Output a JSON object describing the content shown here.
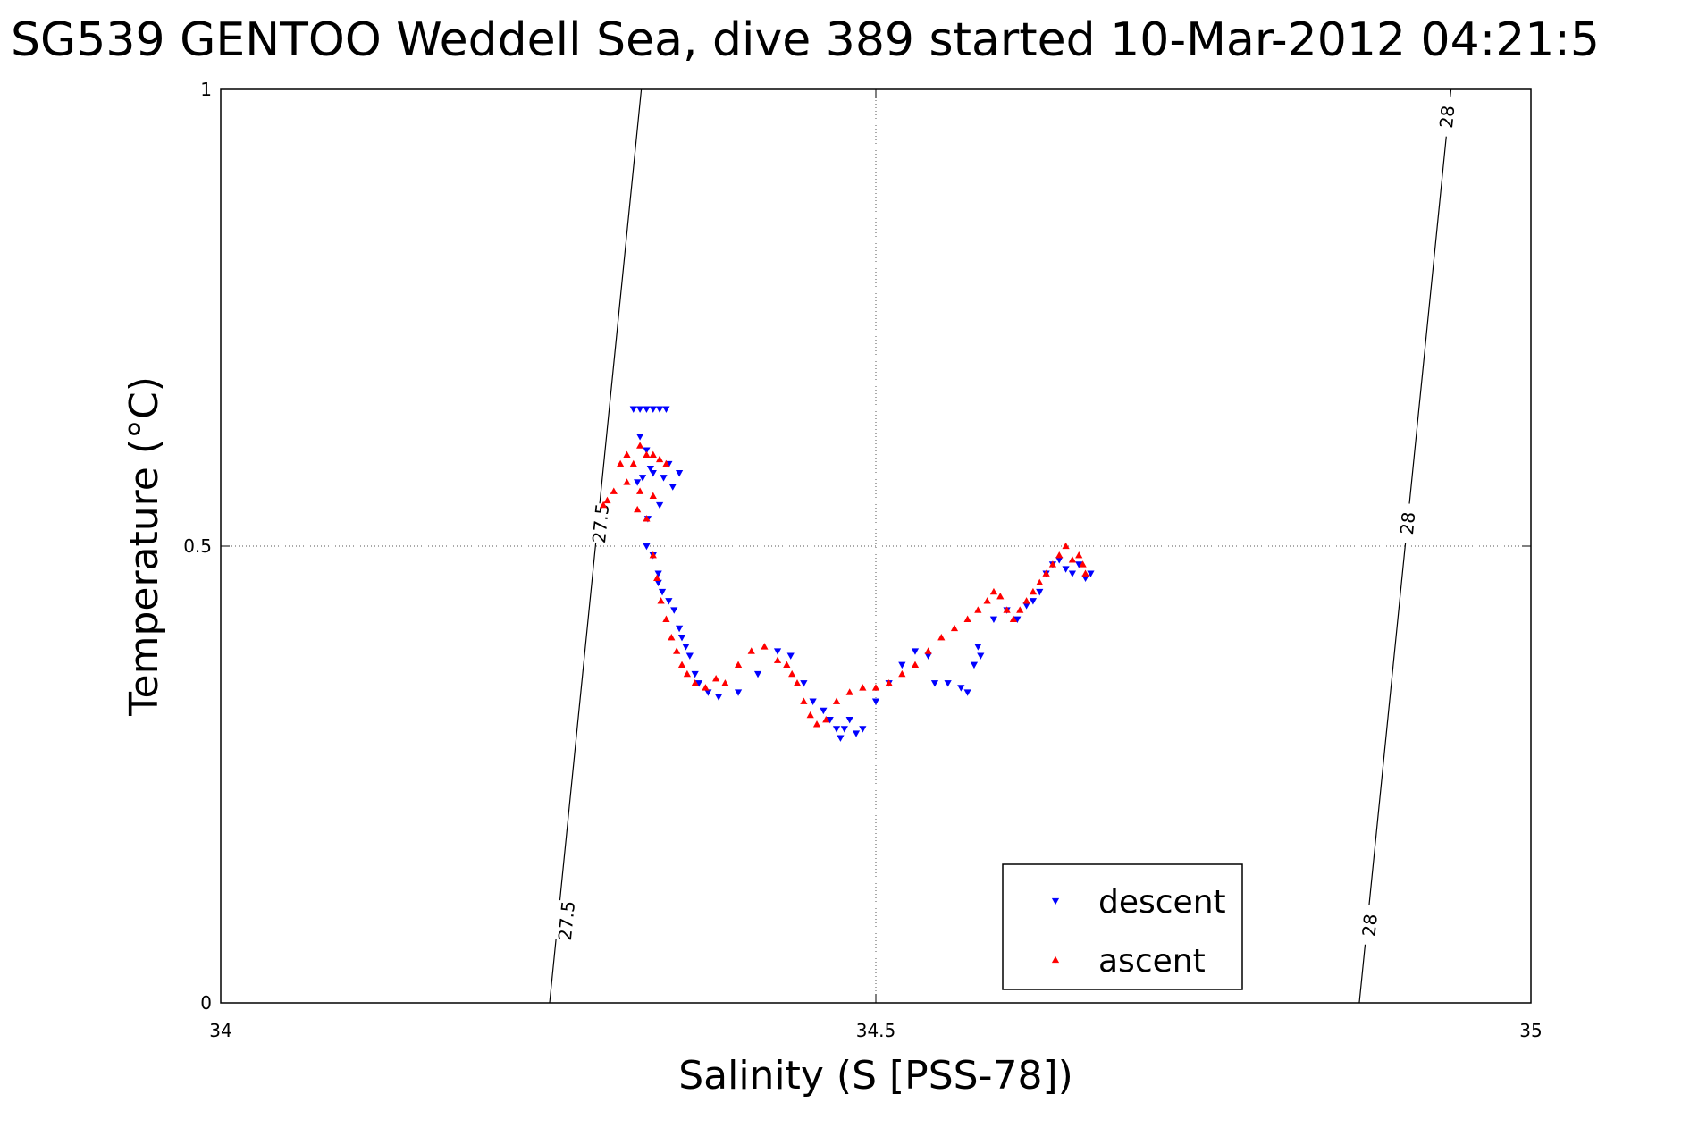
{
  "chart_data": {
    "type": "scatter",
    "title": "SG539 GENTOO Weddell Sea, dive 389 started 10-Mar-2012 04:21:5",
    "xlabel": "Salinity (S [PSS-78])",
    "ylabel": "Temperature (°C)",
    "xlim": [
      34,
      35
    ],
    "ylim": [
      0,
      1
    ],
    "xticks": [
      {
        "value": 34,
        "label": "34"
      },
      {
        "value": 34.5,
        "label": "34.5"
      },
      {
        "value": 35,
        "label": "35"
      }
    ],
    "yticks": [
      {
        "value": 0,
        "label": "0"
      },
      {
        "value": 0.5,
        "label": "0.5"
      },
      {
        "value": 1,
        "label": "1"
      }
    ],
    "grid": "dotted",
    "legend_position": "bottom-right",
    "density_contours": [
      {
        "level": "27.5",
        "points": [
          [
            34.251,
            0
          ],
          [
            34.321,
            1
          ]
        ],
        "labels": [
          {
            "x": 34.264,
            "y": 0.09,
            "text": "27.5"
          },
          {
            "x": 34.29,
            "y": 0.525,
            "text": "27.5"
          }
        ]
      },
      {
        "level": "28",
        "points": [
          [
            34.869,
            0
          ],
          [
            34.939,
            1
          ]
        ],
        "labels": [
          {
            "x": 34.877,
            "y": 0.085,
            "text": "28"
          },
          {
            "x": 34.906,
            "y": 0.525,
            "text": "28"
          },
          {
            "x": 34.936,
            "y": 0.97,
            "text": "28"
          }
        ]
      }
    ],
    "series": [
      {
        "name": "descent",
        "color": "#0000ff",
        "marker": "triangle-down",
        "x": [
          34.315,
          34.32,
          34.325,
          34.33,
          34.335,
          34.34,
          34.32,
          34.325,
          34.328,
          34.322,
          34.318,
          34.33,
          34.338,
          34.342,
          34.35,
          34.345,
          34.335,
          34.326,
          34.325,
          34.33,
          34.334,
          34.334,
          34.337,
          34.342,
          34.346,
          34.35,
          34.352,
          34.355,
          34.358,
          34.362,
          34.365,
          34.372,
          34.38,
          34.395,
          34.41,
          34.425,
          34.435,
          34.445,
          34.452,
          34.46,
          34.465,
          34.47,
          34.473,
          34.476,
          34.48,
          34.485,
          34.49,
          34.5,
          34.51,
          34.52,
          34.53,
          34.54,
          34.545,
          34.555,
          34.565,
          34.57,
          34.575,
          34.578,
          34.58,
          34.59,
          34.6,
          34.608,
          34.615,
          34.62,
          34.625,
          34.63,
          34.635,
          34.64,
          34.645,
          34.65,
          34.655,
          34.66,
          34.664
        ],
        "y": [
          0.65,
          0.65,
          0.65,
          0.65,
          0.65,
          0.65,
          0.62,
          0.605,
          0.585,
          0.575,
          0.57,
          0.58,
          0.575,
          0.59,
          0.58,
          0.565,
          0.545,
          0.53,
          0.5,
          0.49,
          0.47,
          0.46,
          0.45,
          0.44,
          0.43,
          0.41,
          0.4,
          0.39,
          0.38,
          0.36,
          0.35,
          0.34,
          0.335,
          0.34,
          0.36,
          0.385,
          0.38,
          0.35,
          0.33,
          0.32,
          0.31,
          0.3,
          0.29,
          0.3,
          0.31,
          0.295,
          0.3,
          0.33,
          0.35,
          0.37,
          0.385,
          0.38,
          0.35,
          0.35,
          0.345,
          0.34,
          0.37,
          0.39,
          0.38,
          0.42,
          0.43,
          0.42,
          0.435,
          0.44,
          0.45,
          0.47,
          0.48,
          0.485,
          0.475,
          0.47,
          0.48,
          0.465,
          0.47
        ]
      },
      {
        "name": "ascent",
        "color": "#ff0000",
        "marker": "triangle-up",
        "x": [
          34.305,
          34.31,
          34.315,
          34.32,
          34.325,
          34.33,
          34.335,
          34.34,
          34.31,
          34.32,
          34.33,
          34.318,
          34.325,
          34.3,
          34.295,
          34.292,
          34.33,
          34.333,
          34.336,
          34.34,
          34.344,
          34.348,
          34.352,
          34.356,
          34.362,
          34.37,
          34.378,
          34.385,
          34.395,
          34.405,
          34.415,
          34.425,
          34.432,
          34.436,
          34.44,
          34.445,
          34.45,
          34.455,
          34.462,
          34.47,
          34.48,
          34.49,
          34.5,
          34.51,
          34.52,
          34.53,
          34.54,
          34.55,
          34.56,
          34.57,
          34.578,
          34.585,
          34.59,
          34.595,
          34.6,
          34.605,
          34.61,
          34.615,
          34.62,
          34.625,
          34.63,
          34.635,
          34.64,
          34.645,
          34.65,
          34.655,
          34.658,
          34.66
        ],
        "y": [
          0.59,
          0.6,
          0.59,
          0.61,
          0.6,
          0.6,
          0.595,
          0.59,
          0.57,
          0.56,
          0.555,
          0.54,
          0.53,
          0.56,
          0.55,
          0.545,
          0.49,
          0.465,
          0.44,
          0.42,
          0.4,
          0.385,
          0.37,
          0.36,
          0.35,
          0.345,
          0.355,
          0.35,
          0.37,
          0.385,
          0.39,
          0.375,
          0.37,
          0.36,
          0.35,
          0.33,
          0.315,
          0.305,
          0.31,
          0.33,
          0.34,
          0.345,
          0.345,
          0.35,
          0.36,
          0.37,
          0.385,
          0.4,
          0.41,
          0.42,
          0.43,
          0.44,
          0.45,
          0.445,
          0.43,
          0.42,
          0.43,
          0.44,
          0.45,
          0.46,
          0.47,
          0.48,
          0.49,
          0.5,
          0.485,
          0.49,
          0.48,
          0.47
        ]
      }
    ]
  }
}
